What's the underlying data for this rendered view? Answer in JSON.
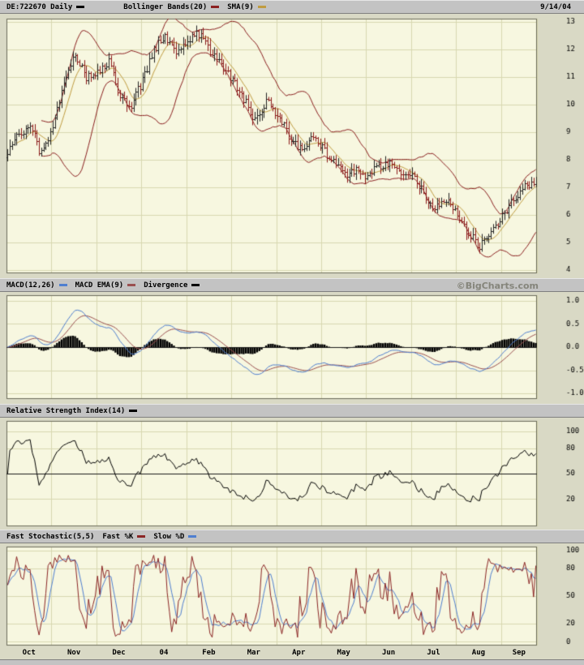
{
  "header": {
    "date": "9/14/04",
    "items": [
      {
        "label": "DE:722670 Daily",
        "color": "#000000"
      },
      {
        "label": "Bollinger Bands(20)",
        "color": "#8b2020"
      },
      {
        "label": "SMA(9)",
        "color": "#c09c40"
      }
    ]
  },
  "watermark": "©BigCharts.com",
  "macd_header": {
    "items": [
      {
        "label": "MACD(12,26)",
        "color": "#4f7fd0"
      },
      {
        "label": "MACD EMA(9)",
        "color": "#9a5050"
      },
      {
        "label": "Divergence",
        "color": "#000000"
      }
    ]
  },
  "rsi_header": {
    "items": [
      {
        "label": "Relative Strength Index(14)",
        "color": "#000000"
      }
    ]
  },
  "stoch_header": {
    "title": "Fast Stochastic(5,5)",
    "items": [
      {
        "label": "Fast %K",
        "color": "#8b2525"
      },
      {
        "label": "Slow %D",
        "color": "#4f7fd0"
      }
    ]
  },
  "x_axis": {
    "months": [
      "Oct",
      "Nov",
      "Dec",
      "04",
      "Feb",
      "Mar",
      "Apr",
      "May",
      "Jun",
      "Jul",
      "Aug",
      "Sep"
    ]
  },
  "colors": {
    "page_bg": "#d9d9c5",
    "bar_bg": "#c3c3c3",
    "plot_bg": "#f7f7e0",
    "grid": "#d8d8b0",
    "border": "#6b6b5a",
    "price_up": "#222222",
    "price_down": "#8b1a1a",
    "bollinger": "#8b2020",
    "sma": "#c09c40",
    "macd": "#4f7fd0",
    "macd_signal": "#9a5050",
    "histogram": "#000000",
    "rsi": "#000000",
    "midline": "#1a1a1a",
    "stoch_k": "#8b2525",
    "stoch_d": "#4f7fd0",
    "watermark": "#85857b"
  },
  "chart_data": [
    {
      "type": "bar",
      "subtype": "ohlc-daily",
      "title": "DE:722670 Daily with Bollinger Bands(20) and SMA(9)",
      "as_of_date": "9/14/04",
      "x_months": [
        "Oct",
        "Nov",
        "Dec",
        "04",
        "Feb",
        "Mar",
        "Apr",
        "May",
        "Jun",
        "Jul",
        "Aug",
        "Sep"
      ],
      "anchors_per_month": 4,
      "weekly_close_estimates": [
        8.2,
        9.0,
        9.2,
        8.2,
        9.3,
        10.8,
        11.9,
        11.0,
        11.2,
        11.6,
        10.3,
        9.9,
        10.9,
        12.0,
        12.5,
        11.9,
        12.3,
        12.6,
        12.0,
        11.5,
        10.9,
        10.2,
        9.5,
        10.1,
        9.7,
        8.9,
        8.4,
        8.8,
        8.4,
        7.9,
        7.5,
        7.7,
        7.3,
        7.8,
        7.9,
        7.4,
        7.4,
        6.8,
        6.3,
        6.6,
        6.0,
        5.3,
        4.9,
        5.5,
        5.9,
        6.6,
        7.0,
        7.3
      ],
      "last_close": 7.3,
      "ylim": [
        4,
        13
      ],
      "y_tick_labels": [
        "13",
        "12",
        "11",
        "10",
        "9",
        "8",
        "7",
        "6",
        "5",
        "4"
      ],
      "overlays": [
        "Bollinger Bands(20)",
        "SMA(9)"
      ],
      "grid": true,
      "legend_position": "top-bar"
    },
    {
      "type": "line",
      "subtype": "macd-with-histogram",
      "title": "MACD(12,26) / MACD EMA(9) / Divergence",
      "derived_from": "weekly_close_estimates of price panel",
      "series": [
        "MACD(12,26)",
        "MACD EMA(9)",
        "Divergence histogram"
      ],
      "ylim": [
        -1.0,
        1.0
      ],
      "y_tick_labels": [
        "1.0",
        "0.5",
        "0.0",
        "-0.5",
        "-1.0"
      ],
      "zero_line": 0.0,
      "grid": true,
      "legend_position": "top-bar"
    },
    {
      "type": "line",
      "subtype": "rsi",
      "title": "Relative Strength Index(14)",
      "derived_from": "weekly_close_estimates of price panel",
      "ylim": [
        0,
        100
      ],
      "y_tick_labels": [
        "100",
        "80",
        "50",
        "20"
      ],
      "midline": 50,
      "grid": true,
      "legend_position": "top-bar"
    },
    {
      "type": "line",
      "subtype": "stochastic",
      "title": "Fast Stochastic(5,5)",
      "derived_from": "weekly_close_estimates of price panel",
      "series": [
        "Fast %K",
        "Slow %D"
      ],
      "ylim": [
        0,
        100
      ],
      "y_tick_labels": [
        "100",
        "80",
        "50",
        "20",
        "0"
      ],
      "grid": true,
      "legend_position": "top-bar"
    }
  ]
}
